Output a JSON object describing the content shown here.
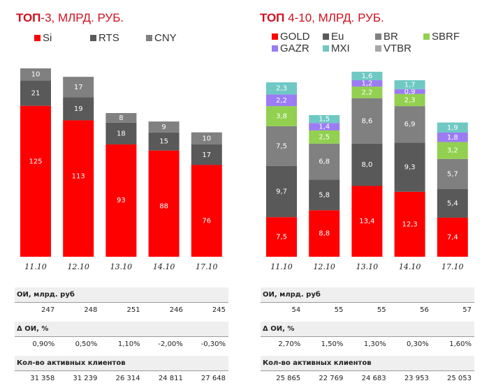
{
  "chart_data": [
    {
      "type": "bar",
      "stacked": true,
      "title": "ТОП-3, МЛРД. РУБ.",
      "title_bold": "ТОП",
      "title_rest": "-3, МЛРД. РУБ.",
      "categories": [
        "11.10",
        "12.10",
        "13.10",
        "14.10",
        "17.10"
      ],
      "series": [
        {
          "name": "Si",
          "color": "#ff0000",
          "values": [
            125,
            113,
            93,
            88,
            76
          ]
        },
        {
          "name": "RTS",
          "color": "#595959",
          "values": [
            21,
            19,
            18,
            15,
            17
          ]
        },
        {
          "name": "CNY",
          "color": "#808080",
          "values": [
            10,
            17,
            8,
            9,
            10
          ]
        }
      ],
      "labels": [
        [
          "125",
          "113",
          "93",
          "88",
          "76"
        ],
        [
          "21",
          "19",
          "18",
          "15",
          "17"
        ],
        [
          "10",
          "17",
          "8",
          "9",
          "10"
        ]
      ],
      "xlabel": "",
      "ylabel": "",
      "grid": false,
      "legend": "top-left"
    },
    {
      "type": "bar",
      "stacked": true,
      "title": "ТОП 4-10, МЛРД. РУБ.",
      "title_bold": "ТОП",
      "title_rest": " 4-10, МЛРД. РУБ.",
      "categories": [
        "11.10",
        "12.10",
        "13.10",
        "14.10",
        "17.10"
      ],
      "series": [
        {
          "name": "GOLD",
          "color": "#ff0000",
          "values": [
            7.5,
            8.8,
            13.4,
            12.3,
            7.4
          ]
        },
        {
          "name": "Eu",
          "color": "#595959",
          "values": [
            9.7,
            5.8,
            8.0,
            9.3,
            5.4
          ]
        },
        {
          "name": "BR",
          "color": "#808080",
          "values": [
            7.5,
            6.8,
            8.6,
            6.9,
            5.7
          ]
        },
        {
          "name": "SBRF",
          "color": "#92d050",
          "values": [
            3.8,
            2.5,
            2.2,
            2.3,
            3.2
          ]
        },
        {
          "name": "GAZR",
          "color": "#9b7cf4",
          "values": [
            2.2,
            1.4,
            1.2,
            0.9,
            1.8
          ]
        },
        {
          "name": "MXI",
          "color": "#6fc8c4",
          "values": [
            2.3,
            1.5,
            1.6,
            1.7,
            1.9
          ]
        },
        {
          "name": "VTBR",
          "color": "#a6a6a6",
          "values": [
            null,
            null,
            null,
            null,
            null
          ]
        }
      ],
      "labels": [
        [
          "7,5",
          "8,8",
          "13,4",
          "12,3",
          "7,4"
        ],
        [
          "9,7",
          "5,8",
          "8,0",
          "9,3",
          "5,4"
        ],
        [
          "7,5",
          "6,8",
          "8,6",
          "6,9",
          "5,7"
        ],
        [
          "3,8",
          "2,5",
          "2,2",
          "2,3",
          "3,2"
        ],
        [
          "2,2",
          "1,4",
          "1,2",
          "0,9",
          "1,8"
        ],
        [
          "2,3",
          "1,5",
          "1,6",
          "1,7",
          "1,9"
        ],
        [
          "",
          "",
          "",
          "",
          ""
        ]
      ],
      "xlabel": "",
      "ylabel": "",
      "grid": false,
      "legend": "top-left"
    }
  ],
  "tables": [
    {
      "rows": [
        {
          "header": "ОИ, млрд. руб",
          "values": [
            "247",
            "248",
            "251",
            "246",
            "245"
          ]
        },
        {
          "header": "Δ ОИ, %",
          "values": [
            "0,90%",
            "0,50%",
            "1,10%",
            "-2,00%",
            "-0,30%"
          ]
        },
        {
          "header": "Кол-во активных клиентов",
          "values": [
            "31 358",
            "31 239",
            "26 314",
            "24 811",
            "27 648"
          ]
        }
      ]
    },
    {
      "rows": [
        {
          "header": "ОИ, млрд. руб",
          "values": [
            "54",
            "55",
            "55",
            "56",
            "57"
          ]
        },
        {
          "header": "Δ ОИ, %",
          "values": [
            "2,70%",
            "1,50%",
            "1,30%",
            "0,30%",
            "1,60%"
          ]
        },
        {
          "header": "Кол-во активных клиентов",
          "values": [
            "25 865",
            "22 769",
            "24 683",
            "23 953",
            "25 053"
          ]
        }
      ]
    }
  ]
}
